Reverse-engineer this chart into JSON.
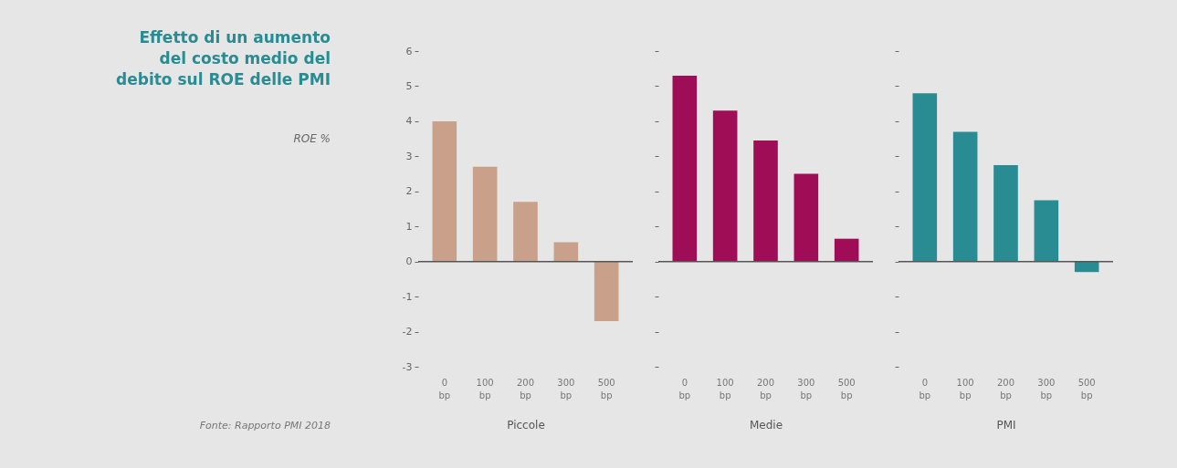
{
  "chart_data": [
    {
      "type": "bar",
      "title": "Effetto di un aumento del costo medio del debito sul ROE delle PMI",
      "ylabel": "ROE %",
      "xlabel": "Piccole",
      "annotations": [
        "Fonte: Rapporto PMI 2018"
      ],
      "categories": [
        "0 bp",
        "100 bp",
        "200 bp",
        "300 bp",
        "500 bp"
      ],
      "values": [
        4.0,
        2.7,
        1.7,
        0.55,
        -1.7
      ],
      "color": "#c9a08a",
      "ylim": [
        -3,
        6
      ],
      "yticks": [
        -3,
        -2,
        -1,
        0,
        1,
        2,
        3,
        4,
        5,
        6
      ]
    },
    {
      "type": "bar",
      "xlabel": "Medie",
      "categories": [
        "0 bp",
        "100 bp",
        "200 bp",
        "300 bp",
        "500 bp"
      ],
      "values": [
        5.3,
        4.3,
        3.45,
        2.5,
        0.65
      ],
      "color": "#9e0d55",
      "ylim": [
        -3,
        6
      ],
      "yticks": [
        -3,
        -2,
        -1,
        0,
        1,
        2,
        3,
        4,
        5,
        6
      ],
      "tick_labels": "x"
    },
    {
      "type": "bar",
      "xlabel": "PMI",
      "categories": [
        "0 bp",
        "100 bp",
        "200 bp",
        "300 bp",
        "500 bp"
      ],
      "values": [
        4.8,
        3.7,
        2.75,
        1.75,
        -0.3
      ],
      "color": "#2a8c93",
      "ylim": [
        -3,
        6
      ],
      "yticks": [
        -3,
        -2,
        -1,
        0,
        1,
        2,
        3,
        4,
        5,
        6
      ],
      "tick_labels": "x"
    }
  ]
}
